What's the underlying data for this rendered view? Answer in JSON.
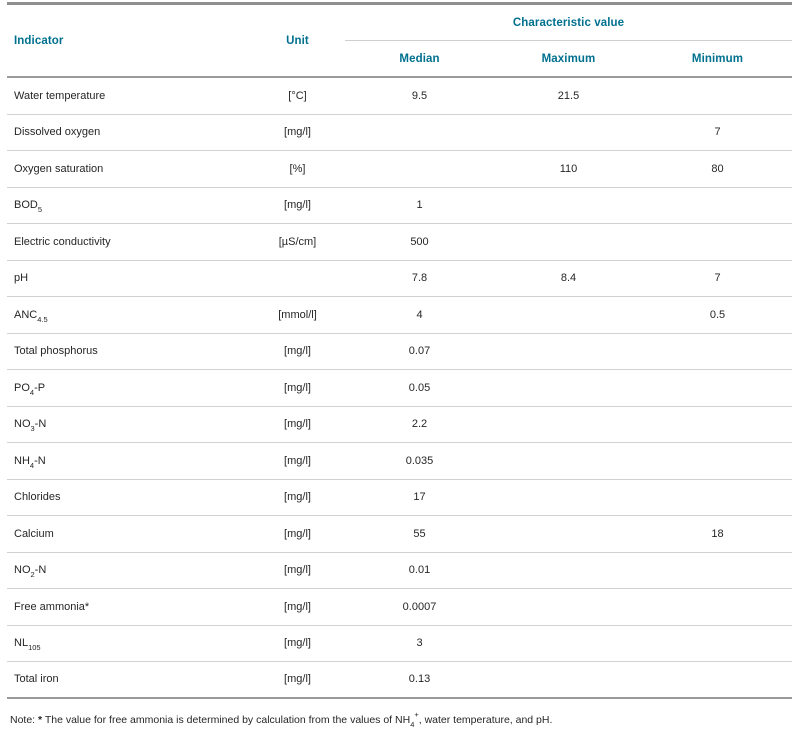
{
  "accent_color": "#00708f",
  "table": {
    "headers": {
      "indicator": "Indicator",
      "unit": "Unit",
      "group": "Characteristic value",
      "median": "Median",
      "maximum": "Maximum",
      "minimum": "Minimum"
    },
    "rows": [
      {
        "indicator": {
          "base": "Water temperature",
          "sub": "",
          "suffix": ""
        },
        "unit": "[°C]",
        "median": "9.5",
        "maximum": "21.5",
        "minimum": ""
      },
      {
        "indicator": {
          "base": "Dissolved oxygen",
          "sub": "",
          "suffix": ""
        },
        "unit": "[mg/l]",
        "median": "",
        "maximum": "",
        "minimum": "7"
      },
      {
        "indicator": {
          "base": "Oxygen saturation",
          "sub": "",
          "suffix": ""
        },
        "unit": "[%]",
        "median": "",
        "maximum": "110",
        "minimum": "80"
      },
      {
        "indicator": {
          "base": "BOD",
          "sub": "5",
          "suffix": ""
        },
        "unit": "[mg/l]",
        "median": "1",
        "maximum": "",
        "minimum": ""
      },
      {
        "indicator": {
          "base": "Electric conductivity",
          "sub": "",
          "suffix": ""
        },
        "unit": "[µS/cm]",
        "median": "500",
        "maximum": "",
        "minimum": ""
      },
      {
        "indicator": {
          "base": "pH",
          "sub": "",
          "suffix": ""
        },
        "unit": "",
        "median": "7.8",
        "maximum": "8.4",
        "minimum": "7"
      },
      {
        "indicator": {
          "base": "ANC",
          "sub": "4.5",
          "suffix": ""
        },
        "unit": "[mmol/l]",
        "median": "4",
        "maximum": "",
        "minimum": "0.5"
      },
      {
        "indicator": {
          "base": "Total phosphorus",
          "sub": "",
          "suffix": ""
        },
        "unit": "[mg/l]",
        "median": "0.07",
        "maximum": "",
        "minimum": ""
      },
      {
        "indicator": {
          "base": "PO",
          "sub": "4",
          "suffix": "-P"
        },
        "unit": "[mg/l]",
        "median": "0.05",
        "maximum": "",
        "minimum": ""
      },
      {
        "indicator": {
          "base": "NO",
          "sub": "3",
          "suffix": "-N"
        },
        "unit": "[mg/l]",
        "median": "2.2",
        "maximum": "",
        "minimum": ""
      },
      {
        "indicator": {
          "base": "NH",
          "sub": "4",
          "suffix": "-N"
        },
        "unit": "[mg/l]",
        "median": "0.035",
        "maximum": "",
        "minimum": ""
      },
      {
        "indicator": {
          "base": "Chlorides",
          "sub": "",
          "suffix": ""
        },
        "unit": "[mg/l]",
        "median": "17",
        "maximum": "",
        "minimum": ""
      },
      {
        "indicator": {
          "base": "Calcium",
          "sub": "",
          "suffix": ""
        },
        "unit": "[mg/l]",
        "median": "55",
        "maximum": "",
        "minimum": "18"
      },
      {
        "indicator": {
          "base": "NO",
          "sub": "2",
          "suffix": "-N"
        },
        "unit": "[mg/l]",
        "median": "0.01",
        "maximum": "",
        "minimum": ""
      },
      {
        "indicator": {
          "base": "Free ammonia*",
          "sub": "",
          "suffix": ""
        },
        "unit": "[mg/l]",
        "median": "0.0007",
        "maximum": "",
        "minimum": ""
      },
      {
        "indicator": {
          "base": "NL",
          "sub": "105",
          "suffix": ""
        },
        "unit": "[mg/l]",
        "median": "3",
        "maximum": "",
        "minimum": ""
      },
      {
        "indicator": {
          "base": "Total iron",
          "sub": "",
          "suffix": ""
        },
        "unit": "[mg/l]",
        "median": "0.13",
        "maximum": "",
        "minimum": ""
      }
    ],
    "note": {
      "prefix": "Note: ",
      "star": "*",
      "body": " The value for free ammonia is determined by calculation from the values of NH",
      "sub": "4",
      "sup": "+",
      "tail": ", water temperature, and pH."
    }
  }
}
